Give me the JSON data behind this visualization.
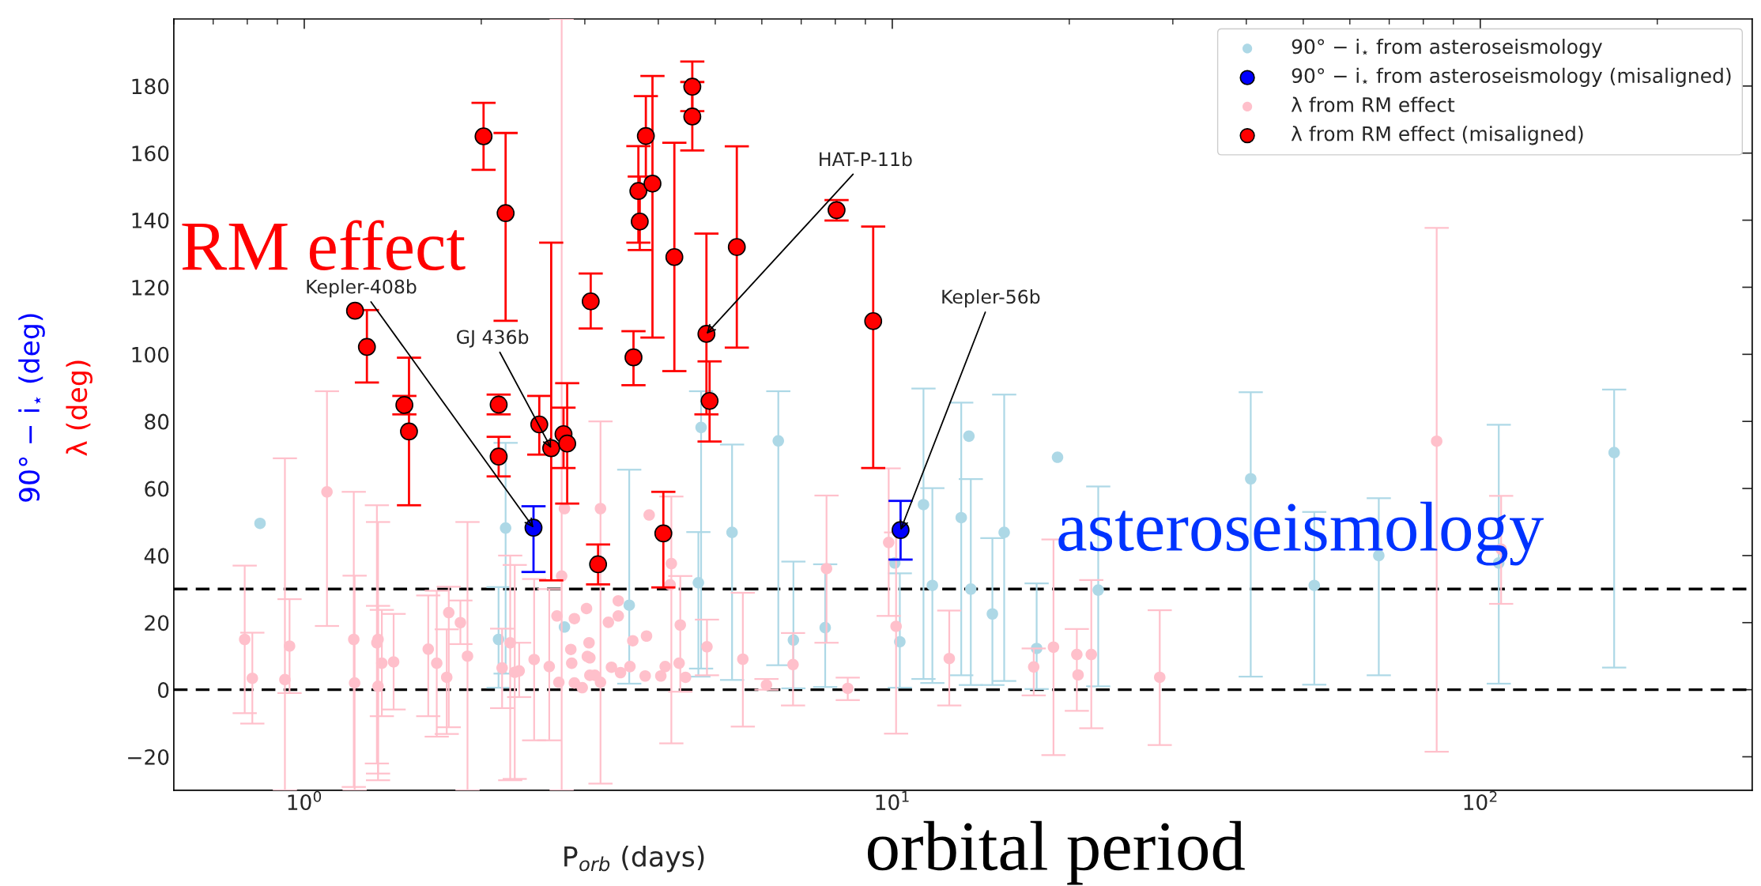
{
  "chart_data": {
    "type": "scatter",
    "xlabel": "P$_{orb}$ (days)",
    "ylabel": "90° − i$_{⋆}$ (deg)\nλ (deg)",
    "log": "x",
    "xlim": [
      0.6,
      290
    ],
    "ylim": [
      -30,
      200
    ],
    "xticks": [
      {
        "value": 1,
        "label": "10$^{0}$"
      },
      {
        "value": 10,
        "label": "10$^{1}$"
      },
      {
        "value": 100,
        "label": "10$^{2}$"
      }
    ],
    "yticks": [
      {
        "value": -20,
        "label": "−20"
      },
      0,
      20,
      40,
      60,
      80,
      100,
      120,
      140,
      160,
      180
    ],
    "grid": false,
    "legend": "top right",
    "marker": "circle",
    "ref_lines": [
      {
        "axis": "y",
        "value": 0,
        "color": "#000000",
        "line_style": "dashed"
      },
      {
        "axis": "y",
        "value": 30,
        "color": "#000000",
        "line_style": "dashed"
      }
    ],
    "annotations": [
      "RM effect",
      "asteroseismology",
      "orbital period",
      {
        "text": "Kepler-408b",
        "x": 2.454,
        "y": 48.3
      },
      {
        "text": "GJ 436b",
        "x": 2.63,
        "y": 72
      },
      {
        "text": "HAT-P-11b",
        "x": 4.83,
        "y": 106.1
      },
      {
        "text": "Kepler-56b",
        "x": 10.33,
        "y": 47.6
      }
    ],
    "series": [
      {
        "name": "90° − i$_{⋆}$ from asteroseismology",
        "color": "#add8e6",
        "x": [
          0.841,
          2.2,
          2.14,
          2.77,
          4.73,
          4.68,
          5.34,
          6.4,
          3.57,
          6.79,
          7.69,
          11.3,
          10.1,
          10.3,
          11.7,
          13.1,
          13.5,
          13.6,
          14.8,
          15.5,
          19.1,
          17.6,
          22.4,
          40.7,
          52.2,
          67.2,
          107.5,
          168.9
        ],
        "values": [
          49.6,
          48.2,
          15.0,
          18.7,
          78.2,
          31.9,
          46.9,
          74.2,
          25.2,
          14.8,
          18.5,
          55.2,
          37.8,
          14.3,
          31.1,
          51.3,
          75.6,
          30.0,
          22.6,
          46.9,
          69.3,
          12.3,
          29.7,
          62.9,
          31.1,
          40.0,
          37.8,
          70.7
        ],
        "errors": [
          null,
          [
            4.8,
            73.6
          ],
          [
            0.6,
            30.6
          ],
          null,
          [
            6.3,
            89
          ],
          [
            3.9,
            47
          ],
          [
            2.9,
            73.1
          ],
          [
            7.3,
            89
          ],
          [
            1.8,
            65.6
          ],
          [
            0.4,
            38.2
          ],
          [
            0.8,
            37.4
          ],
          [
            3.2,
            89.8
          ],
          null,
          [
            0.6,
            34.7
          ],
          [
            2.0,
            60.1
          ],
          [
            4.3,
            85.6
          ],
          null,
          [
            1.4,
            62.8
          ],
          [
            1.4,
            45.2
          ],
          [
            2.6,
            88
          ],
          null,
          [
            0.2,
            31.7
          ],
          [
            1.0,
            60.6
          ],
          [
            3.9,
            88.7
          ],
          [
            1.5,
            53.0
          ],
          [
            4.3,
            57.1
          ],
          [
            1.8,
            79.0
          ],
          [
            6.6,
            89.5
          ]
        ]
      },
      {
        "name": "90° − i$_{⋆}$ from asteroseismology (misaligned)",
        "color": "#0000ff",
        "x": [
          2.454,
          10.33
        ],
        "values": [
          48.3,
          47.6
        ],
        "errors": [
          [
            35.1,
            54.7
          ],
          [
            38.8,
            56.3
          ]
        ]
      },
      {
        "name": "λ from RM effect",
        "color": "#ffc0cb",
        "x": [
          0.792,
          0.816,
          0.944,
          0.927,
          1.093,
          1.214,
          1.218,
          1.329,
          1.335,
          1.355,
          1.335,
          1.419,
          1.625,
          1.68,
          1.761,
          1.747,
          1.843,
          1.895,
          2.24,
          2.17,
          2.28,
          2.32,
          2.46,
          2.61,
          2.74,
          2.77,
          2.69,
          2.88,
          2.84,
          2.71,
          2.88,
          2.85,
          3.02,
          3.05,
          3.06,
          3.12,
          2.97,
          3.19,
          3.86,
          4.21,
          4.36,
          4.84,
          5.57,
          6.11,
          6.78,
          7.73,
          8.4,
          9.86,
          10.15,
          12.5,
          3.42,
          3.42,
          3.29,
          3.62,
          3.82,
          3.58,
          4.11,
          4.34,
          4.45,
          4.04,
          3.8,
          4.19,
          3.33,
          3.45,
          3.06,
          3.19,
          3.03,
          17.4,
          18.8,
          20.6,
          20.7,
          21.8,
          28.5,
          84.3,
          108.5
        ],
        "values": [
          15.0,
          3.4,
          13.0,
          3.0,
          59.0,
          15.0,
          2.0,
          14.0,
          15.0,
          7.9,
          1.0,
          8.3,
          12.1,
          7.9,
          23.0,
          3.7,
          20.0,
          10.0,
          14.0,
          6.5,
          5.2,
          5.6,
          9.0,
          6.9,
          33.9,
          54.0,
          22.0,
          21.2,
          12.0,
          2.2,
          2.0,
          7.9,
          24.2,
          14.0,
          9.5,
          4.3,
          0.6,
          54.0,
          52.1,
          37.6,
          19.3,
          12.8,
          9.1,
          1.4,
          7.5,
          36.1,
          0.4,
          43.9,
          18.9,
          9.3,
          26.5,
          22.0,
          20.1,
          14.6,
          16.0,
          6.9,
          6.9,
          7.9,
          3.7,
          4.1,
          4.1,
          31.3,
          6.7,
          5.1,
          4.3,
          2.2,
          9.9,
          6.8,
          12.7,
          10.5,
          4.4,
          10.5,
          3.7,
          74.1,
          41.9
        ],
        "errors": [
          [
            -7,
            37
          ],
          [
            -10.1,
            17
          ],
          [
            -1,
            27
          ],
          [
            -30,
            69
          ],
          [
            19,
            89
          ],
          [
            -29,
            59
          ],
          [
            -30,
            34
          ],
          [
            -22,
            55
          ],
          [
            -25,
            50
          ],
          [
            -7.9,
            23.8
          ],
          [
            -27,
            25
          ],
          [
            -5.9,
            22.6
          ],
          [
            -7.9,
            28.1
          ],
          [
            -14,
            29.5
          ],
          [
            -11.2,
            30.7
          ],
          [
            -13.2,
            18
          ],
          [
            13.6,
            26.6
          ],
          [
            -30,
            50
          ],
          [
            -27,
            40
          ],
          [
            -5.5,
            18.2
          ],
          [
            -26.6,
            37.2
          ],
          [
            -2.2,
            14
          ],
          [
            -15.1,
            33
          ],
          [
            -15.1,
            30
          ],
          [
            -30,
            200
          ],
          null,
          null,
          null,
          null,
          null,
          null,
          null,
          null,
          null,
          null,
          null,
          null,
          [
            -28,
            80
          ],
          null,
          [
            -16,
            57.6
          ],
          [
            -0.6,
            33.9
          ],
          [
            4.3,
            20.9
          ],
          [
            -11,
            28.9
          ],
          [
            0,
            3.2
          ],
          [
            -4.7,
            16.9
          ],
          [
            14,
            57.9
          ],
          [
            -3.1,
            3.6
          ],
          [
            22,
            66
          ],
          [
            -13.1,
            46.9
          ],
          [
            -4.7,
            23.6
          ],
          null,
          null,
          null,
          null,
          null,
          null,
          null,
          null,
          null,
          null,
          null,
          null,
          null,
          null,
          null,
          null,
          null,
          [
            -1.7,
            12.3
          ],
          [
            -19.5,
            44.8
          ],
          [
            -6.3,
            18.1
          ],
          null,
          [
            -11.5,
            32.7
          ],
          [
            -16.5,
            23.7
          ],
          [
            -18.5,
            137.7
          ],
          [
            25.6,
            57.8
          ]
        ]
      },
      {
        "name": "λ from RM effect (misaligned)",
        "color": "#ff0000",
        "x": [
          1.22,
          1.278,
          1.48,
          1.507,
          2.018,
          2.141,
          2.141,
          2.2,
          2.51,
          2.63,
          2.76,
          2.8,
          3.07,
          3.16,
          3.63,
          3.7,
          3.72,
          3.81,
          3.91,
          4.08,
          4.26,
          4.57,
          4.57,
          4.83,
          4.89,
          5.44,
          8.04,
          9.28
        ],
        "values": [
          113,
          102.2,
          84.9,
          77,
          165,
          85,
          69.5,
          142.1,
          79.1,
          72,
          76.2,
          73.4,
          115.8,
          37.4,
          99.1,
          148.7,
          139.6,
          165.1,
          150.9,
          46.6,
          129,
          179.8,
          170.9,
          106.1,
          86.1,
          132,
          143,
          109.9
        ],
        "errors": [
          null,
          [
            91.6,
            113.2
          ],
          [
            82.1,
            87.6
          ],
          [
            55,
            99
          ],
          [
            155,
            175
          ],
          [
            82.1,
            88
          ],
          [
            63.6,
            75.4
          ],
          [
            110,
            166
          ],
          [
            70.1,
            87.6
          ],
          [
            32.6,
            133.3
          ],
          [
            66.1,
            84.1
          ],
          [
            55.5,
            91.4
          ],
          [
            107.7,
            124.1
          ],
          [
            31.4,
            43.3
          ],
          [
            90.8,
            106.9
          ],
          [
            133.3,
            162.1
          ],
          [
            131.1,
            153
          ],
          [
            150,
            177
          ],
          [
            105,
            183
          ],
          [
            30.5,
            59
          ],
          [
            95,
            163.1
          ],
          [
            172.5,
            187.3
          ],
          [
            160.8,
            181.2
          ],
          [
            82.1,
            136
          ],
          [
            74,
            97.9
          ],
          [
            102,
            162
          ],
          [
            139.9,
            146
          ],
          [
            66.1,
            138.1
          ]
        ]
      }
    ]
  }
}
